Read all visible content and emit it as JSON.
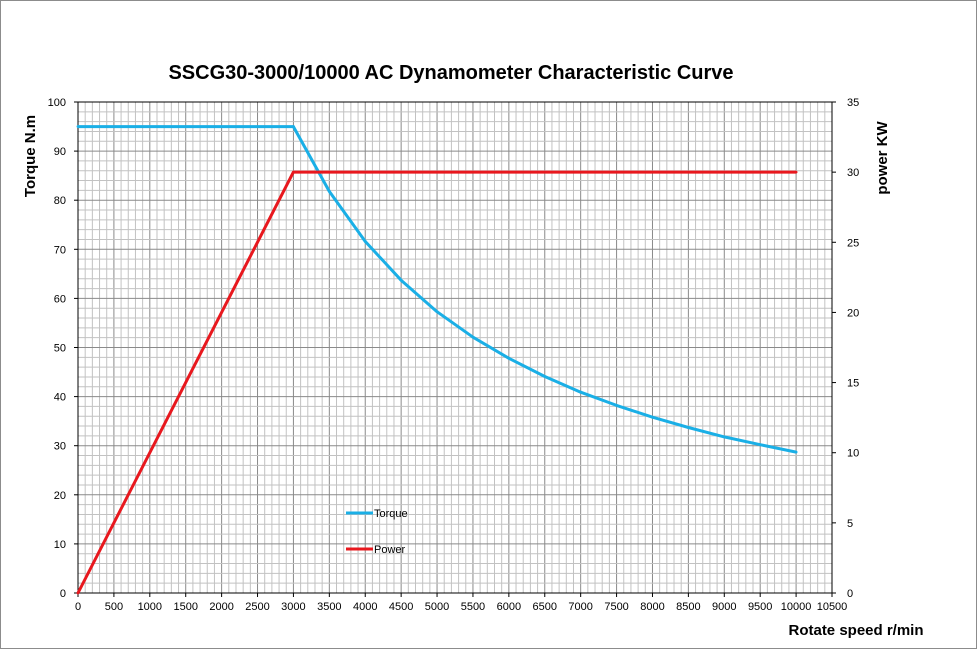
{
  "chart_data": {
    "type": "line",
    "title": "SSCG30-3000/10000  AC Dynamometer Characteristic Curve",
    "xlabel": "Rotate speed r/min",
    "ylabel_left": "Torque N.m",
    "ylabel_right": "power KW",
    "xlim": [
      0,
      10500
    ],
    "ylim_left": [
      0,
      100
    ],
    "ylim_right": [
      0,
      35
    ],
    "grid": true,
    "x_ticks": [
      "0",
      "500",
      "1000",
      "1500",
      "2000",
      "2500",
      "3000",
      "3500",
      "4000",
      "4500",
      "5000",
      "5500",
      "6000",
      "6500",
      "7000",
      "7500",
      "8000",
      "8500",
      "9000",
      "9500",
      "10000",
      "10500"
    ],
    "y_left_ticks": [
      "0",
      "10",
      "20",
      "30",
      "40",
      "50",
      "60",
      "70",
      "80",
      "90",
      "100"
    ],
    "y_right_ticks": [
      "0",
      "5",
      "10",
      "15",
      "20",
      "25",
      "30",
      "35"
    ],
    "legend_position": "center-left",
    "series": [
      {
        "name": "Torque",
        "axis": "left",
        "color": "#1aafe6",
        "x": [
          0,
          3000,
          3500,
          4000,
          4500,
          5000,
          5500,
          6000,
          6500,
          7000,
          7500,
          8000,
          8500,
          9000,
          9500,
          10000
        ],
        "values": [
          95,
          95,
          81.8,
          71.6,
          63.7,
          57.3,
          52.1,
          47.8,
          44.1,
          40.9,
          38.2,
          35.8,
          33.7,
          31.8,
          30.2,
          28.7
        ]
      },
      {
        "name": "Power",
        "axis": "right",
        "color": "#e8181e",
        "x": [
          0,
          3000,
          10000
        ],
        "values": [
          0,
          30,
          30
        ]
      }
    ]
  }
}
